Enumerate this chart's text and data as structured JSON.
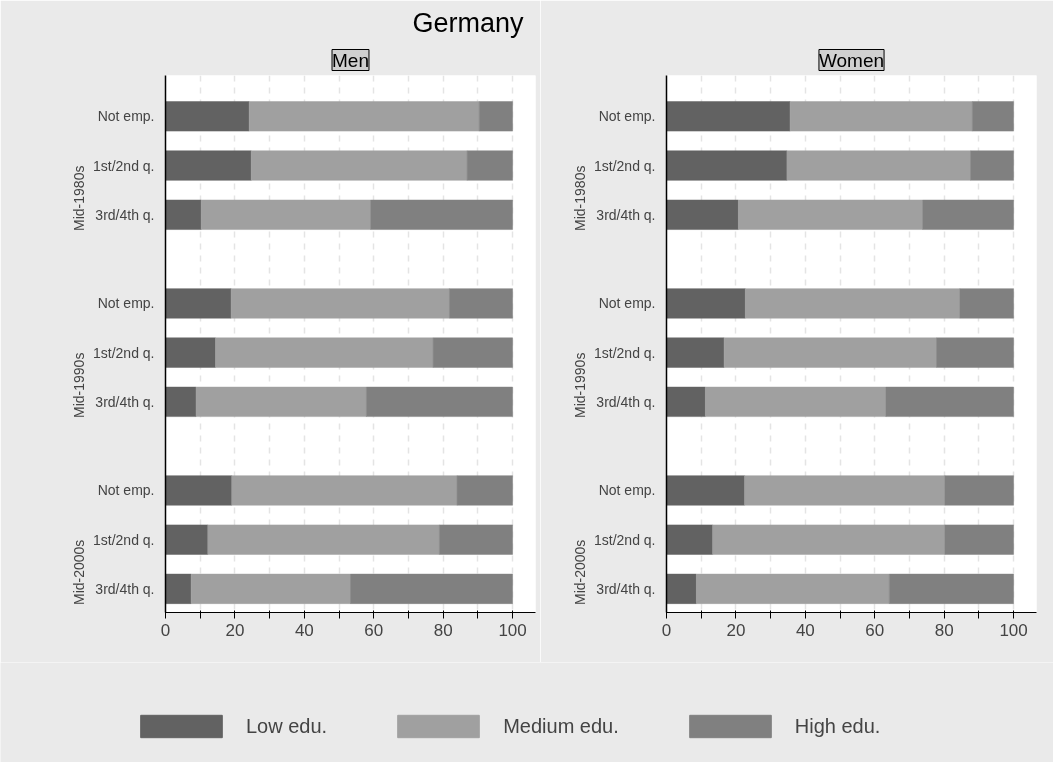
{
  "chart_data": [
    {
      "type": "bar",
      "orientation": "horizontal",
      "stacked": true,
      "title": "Germany",
      "subtitle": "Men",
      "categories": [
        "Not emp.",
        "1st/2nd q.",
        "3rd/4th q.",
        "Not emp.",
        "1st/2nd q.",
        "3rd/4th q.",
        "Not emp.",
        "1st/2nd q.",
        "3rd/4th q."
      ],
      "annotations": [
        "Mid-1980s",
        "Mid-1990s",
        "Mid-2000s"
      ],
      "series": [
        {
          "name": "Low edu.",
          "color": "#626262",
          "values": [
            24.1,
            24.7,
            10.3,
            18.9,
            14.4,
            8.8,
            19.1,
            12.2,
            7.4
          ]
        },
        {
          "name": "Medium edu.",
          "color": "#a0a0a0",
          "values": [
            66.3,
            62.2,
            48.8,
            62.9,
            62.7,
            49.1,
            64.9,
            66.7,
            45.9
          ]
        },
        {
          "name": "High edu.",
          "color": "#808080",
          "values": [
            9.6,
            13.1,
            40.9,
            18.2,
            22.9,
            42.1,
            16.0,
            21.1,
            46.7
          ]
        }
      ],
      "xlim": [
        0,
        106.6
      ],
      "xticks": [
        0,
        {
          "value": 10,
          "label": null
        },
        20,
        {
          "value": 30,
          "label": null
        },
        40,
        {
          "value": 50,
          "label": null
        },
        60,
        {
          "value": 70,
          "label": null
        },
        80,
        {
          "value": 90,
          "label": null
        },
        100
      ],
      "grid": "x",
      "legend": "bottom"
    },
    {
      "type": "bar",
      "orientation": "horizontal",
      "stacked": true,
      "subtitle": "Women",
      "categories": [
        "Not emp.",
        "1st/2nd q.",
        "3rd/4th q.",
        "Not emp.",
        "1st/2nd q.",
        "3rd/4th q.",
        "Not emp.",
        "1st/2nd q.",
        "3rd/4th q."
      ],
      "annotations": [
        "Mid-1980s",
        "Mid-1990s",
        "Mid-2000s"
      ],
      "series": [
        {
          "color": "#626262",
          "values": [
            35.6,
            34.7,
            20.7,
            22.7,
            16.6,
            11.2,
            22.5,
            13.3,
            8.6
          ]
        },
        {
          "color": "#a0a0a0",
          "values": [
            52.5,
            52.9,
            53.1,
            61.8,
            61.2,
            52.0,
            57.7,
            66.9,
            55.6
          ]
        },
        {
          "color": "#808080",
          "values": [
            11.9,
            12.4,
            26.2,
            15.5,
            22.2,
            36.8,
            19.8,
            19.8,
            35.8
          ]
        }
      ],
      "xlim": [
        0,
        106.6
      ],
      "xticks": [
        0,
        {
          "value": 10,
          "label": null
        },
        20,
        {
          "value": 30,
          "label": null
        },
        40,
        {
          "value": 50,
          "label": null
        },
        60,
        {
          "value": 70,
          "label": null
        },
        80,
        {
          "value": 90,
          "label": null
        },
        100
      ],
      "grid": "x"
    }
  ]
}
